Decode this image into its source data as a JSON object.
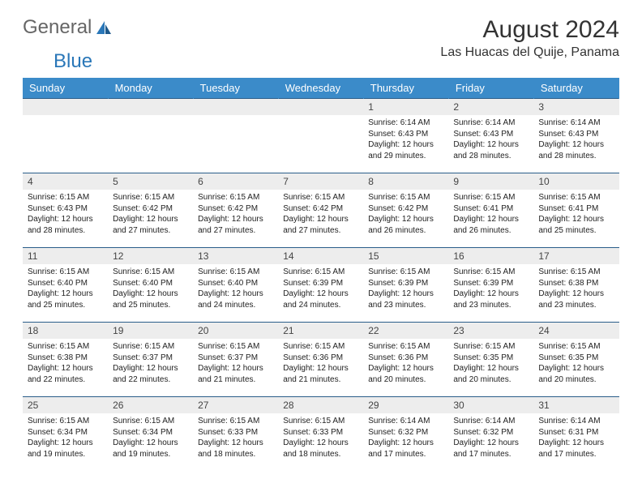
{
  "logo": {
    "text1": "General",
    "text2": "Blue"
  },
  "title": "August 2024",
  "location": "Las Huacas del Quije, Panama",
  "colors": {
    "header_bg": "#3b8bc9",
    "header_text": "#ffffff",
    "daynum_bg": "#ededed",
    "border": "#2a5d8a",
    "logo_blue": "#2a77b8"
  },
  "day_headers": [
    "Sunday",
    "Monday",
    "Tuesday",
    "Wednesday",
    "Thursday",
    "Friday",
    "Saturday"
  ],
  "weeks": [
    [
      {
        "n": "",
        "lines": []
      },
      {
        "n": "",
        "lines": []
      },
      {
        "n": "",
        "lines": []
      },
      {
        "n": "",
        "lines": []
      },
      {
        "n": "1",
        "lines": [
          "Sunrise: 6:14 AM",
          "Sunset: 6:43 PM",
          "Daylight: 12 hours",
          "and 29 minutes."
        ]
      },
      {
        "n": "2",
        "lines": [
          "Sunrise: 6:14 AM",
          "Sunset: 6:43 PM",
          "Daylight: 12 hours",
          "and 28 minutes."
        ]
      },
      {
        "n": "3",
        "lines": [
          "Sunrise: 6:14 AM",
          "Sunset: 6:43 PM",
          "Daylight: 12 hours",
          "and 28 minutes."
        ]
      }
    ],
    [
      {
        "n": "4",
        "lines": [
          "Sunrise: 6:15 AM",
          "Sunset: 6:43 PM",
          "Daylight: 12 hours",
          "and 28 minutes."
        ]
      },
      {
        "n": "5",
        "lines": [
          "Sunrise: 6:15 AM",
          "Sunset: 6:42 PM",
          "Daylight: 12 hours",
          "and 27 minutes."
        ]
      },
      {
        "n": "6",
        "lines": [
          "Sunrise: 6:15 AM",
          "Sunset: 6:42 PM",
          "Daylight: 12 hours",
          "and 27 minutes."
        ]
      },
      {
        "n": "7",
        "lines": [
          "Sunrise: 6:15 AM",
          "Sunset: 6:42 PM",
          "Daylight: 12 hours",
          "and 27 minutes."
        ]
      },
      {
        "n": "8",
        "lines": [
          "Sunrise: 6:15 AM",
          "Sunset: 6:42 PM",
          "Daylight: 12 hours",
          "and 26 minutes."
        ]
      },
      {
        "n": "9",
        "lines": [
          "Sunrise: 6:15 AM",
          "Sunset: 6:41 PM",
          "Daylight: 12 hours",
          "and 26 minutes."
        ]
      },
      {
        "n": "10",
        "lines": [
          "Sunrise: 6:15 AM",
          "Sunset: 6:41 PM",
          "Daylight: 12 hours",
          "and 25 minutes."
        ]
      }
    ],
    [
      {
        "n": "11",
        "lines": [
          "Sunrise: 6:15 AM",
          "Sunset: 6:40 PM",
          "Daylight: 12 hours",
          "and 25 minutes."
        ]
      },
      {
        "n": "12",
        "lines": [
          "Sunrise: 6:15 AM",
          "Sunset: 6:40 PM",
          "Daylight: 12 hours",
          "and 25 minutes."
        ]
      },
      {
        "n": "13",
        "lines": [
          "Sunrise: 6:15 AM",
          "Sunset: 6:40 PM",
          "Daylight: 12 hours",
          "and 24 minutes."
        ]
      },
      {
        "n": "14",
        "lines": [
          "Sunrise: 6:15 AM",
          "Sunset: 6:39 PM",
          "Daylight: 12 hours",
          "and 24 minutes."
        ]
      },
      {
        "n": "15",
        "lines": [
          "Sunrise: 6:15 AM",
          "Sunset: 6:39 PM",
          "Daylight: 12 hours",
          "and 23 minutes."
        ]
      },
      {
        "n": "16",
        "lines": [
          "Sunrise: 6:15 AM",
          "Sunset: 6:39 PM",
          "Daylight: 12 hours",
          "and 23 minutes."
        ]
      },
      {
        "n": "17",
        "lines": [
          "Sunrise: 6:15 AM",
          "Sunset: 6:38 PM",
          "Daylight: 12 hours",
          "and 23 minutes."
        ]
      }
    ],
    [
      {
        "n": "18",
        "lines": [
          "Sunrise: 6:15 AM",
          "Sunset: 6:38 PM",
          "Daylight: 12 hours",
          "and 22 minutes."
        ]
      },
      {
        "n": "19",
        "lines": [
          "Sunrise: 6:15 AM",
          "Sunset: 6:37 PM",
          "Daylight: 12 hours",
          "and 22 minutes."
        ]
      },
      {
        "n": "20",
        "lines": [
          "Sunrise: 6:15 AM",
          "Sunset: 6:37 PM",
          "Daylight: 12 hours",
          "and 21 minutes."
        ]
      },
      {
        "n": "21",
        "lines": [
          "Sunrise: 6:15 AM",
          "Sunset: 6:36 PM",
          "Daylight: 12 hours",
          "and 21 minutes."
        ]
      },
      {
        "n": "22",
        "lines": [
          "Sunrise: 6:15 AM",
          "Sunset: 6:36 PM",
          "Daylight: 12 hours",
          "and 20 minutes."
        ]
      },
      {
        "n": "23",
        "lines": [
          "Sunrise: 6:15 AM",
          "Sunset: 6:35 PM",
          "Daylight: 12 hours",
          "and 20 minutes."
        ]
      },
      {
        "n": "24",
        "lines": [
          "Sunrise: 6:15 AM",
          "Sunset: 6:35 PM",
          "Daylight: 12 hours",
          "and 20 minutes."
        ]
      }
    ],
    [
      {
        "n": "25",
        "lines": [
          "Sunrise: 6:15 AM",
          "Sunset: 6:34 PM",
          "Daylight: 12 hours",
          "and 19 minutes."
        ]
      },
      {
        "n": "26",
        "lines": [
          "Sunrise: 6:15 AM",
          "Sunset: 6:34 PM",
          "Daylight: 12 hours",
          "and 19 minutes."
        ]
      },
      {
        "n": "27",
        "lines": [
          "Sunrise: 6:15 AM",
          "Sunset: 6:33 PM",
          "Daylight: 12 hours",
          "and 18 minutes."
        ]
      },
      {
        "n": "28",
        "lines": [
          "Sunrise: 6:15 AM",
          "Sunset: 6:33 PM",
          "Daylight: 12 hours",
          "and 18 minutes."
        ]
      },
      {
        "n": "29",
        "lines": [
          "Sunrise: 6:14 AM",
          "Sunset: 6:32 PM",
          "Daylight: 12 hours",
          "and 17 minutes."
        ]
      },
      {
        "n": "30",
        "lines": [
          "Sunrise: 6:14 AM",
          "Sunset: 6:32 PM",
          "Daylight: 12 hours",
          "and 17 minutes."
        ]
      },
      {
        "n": "31",
        "lines": [
          "Sunrise: 6:14 AM",
          "Sunset: 6:31 PM",
          "Daylight: 12 hours",
          "and 17 minutes."
        ]
      }
    ]
  ]
}
